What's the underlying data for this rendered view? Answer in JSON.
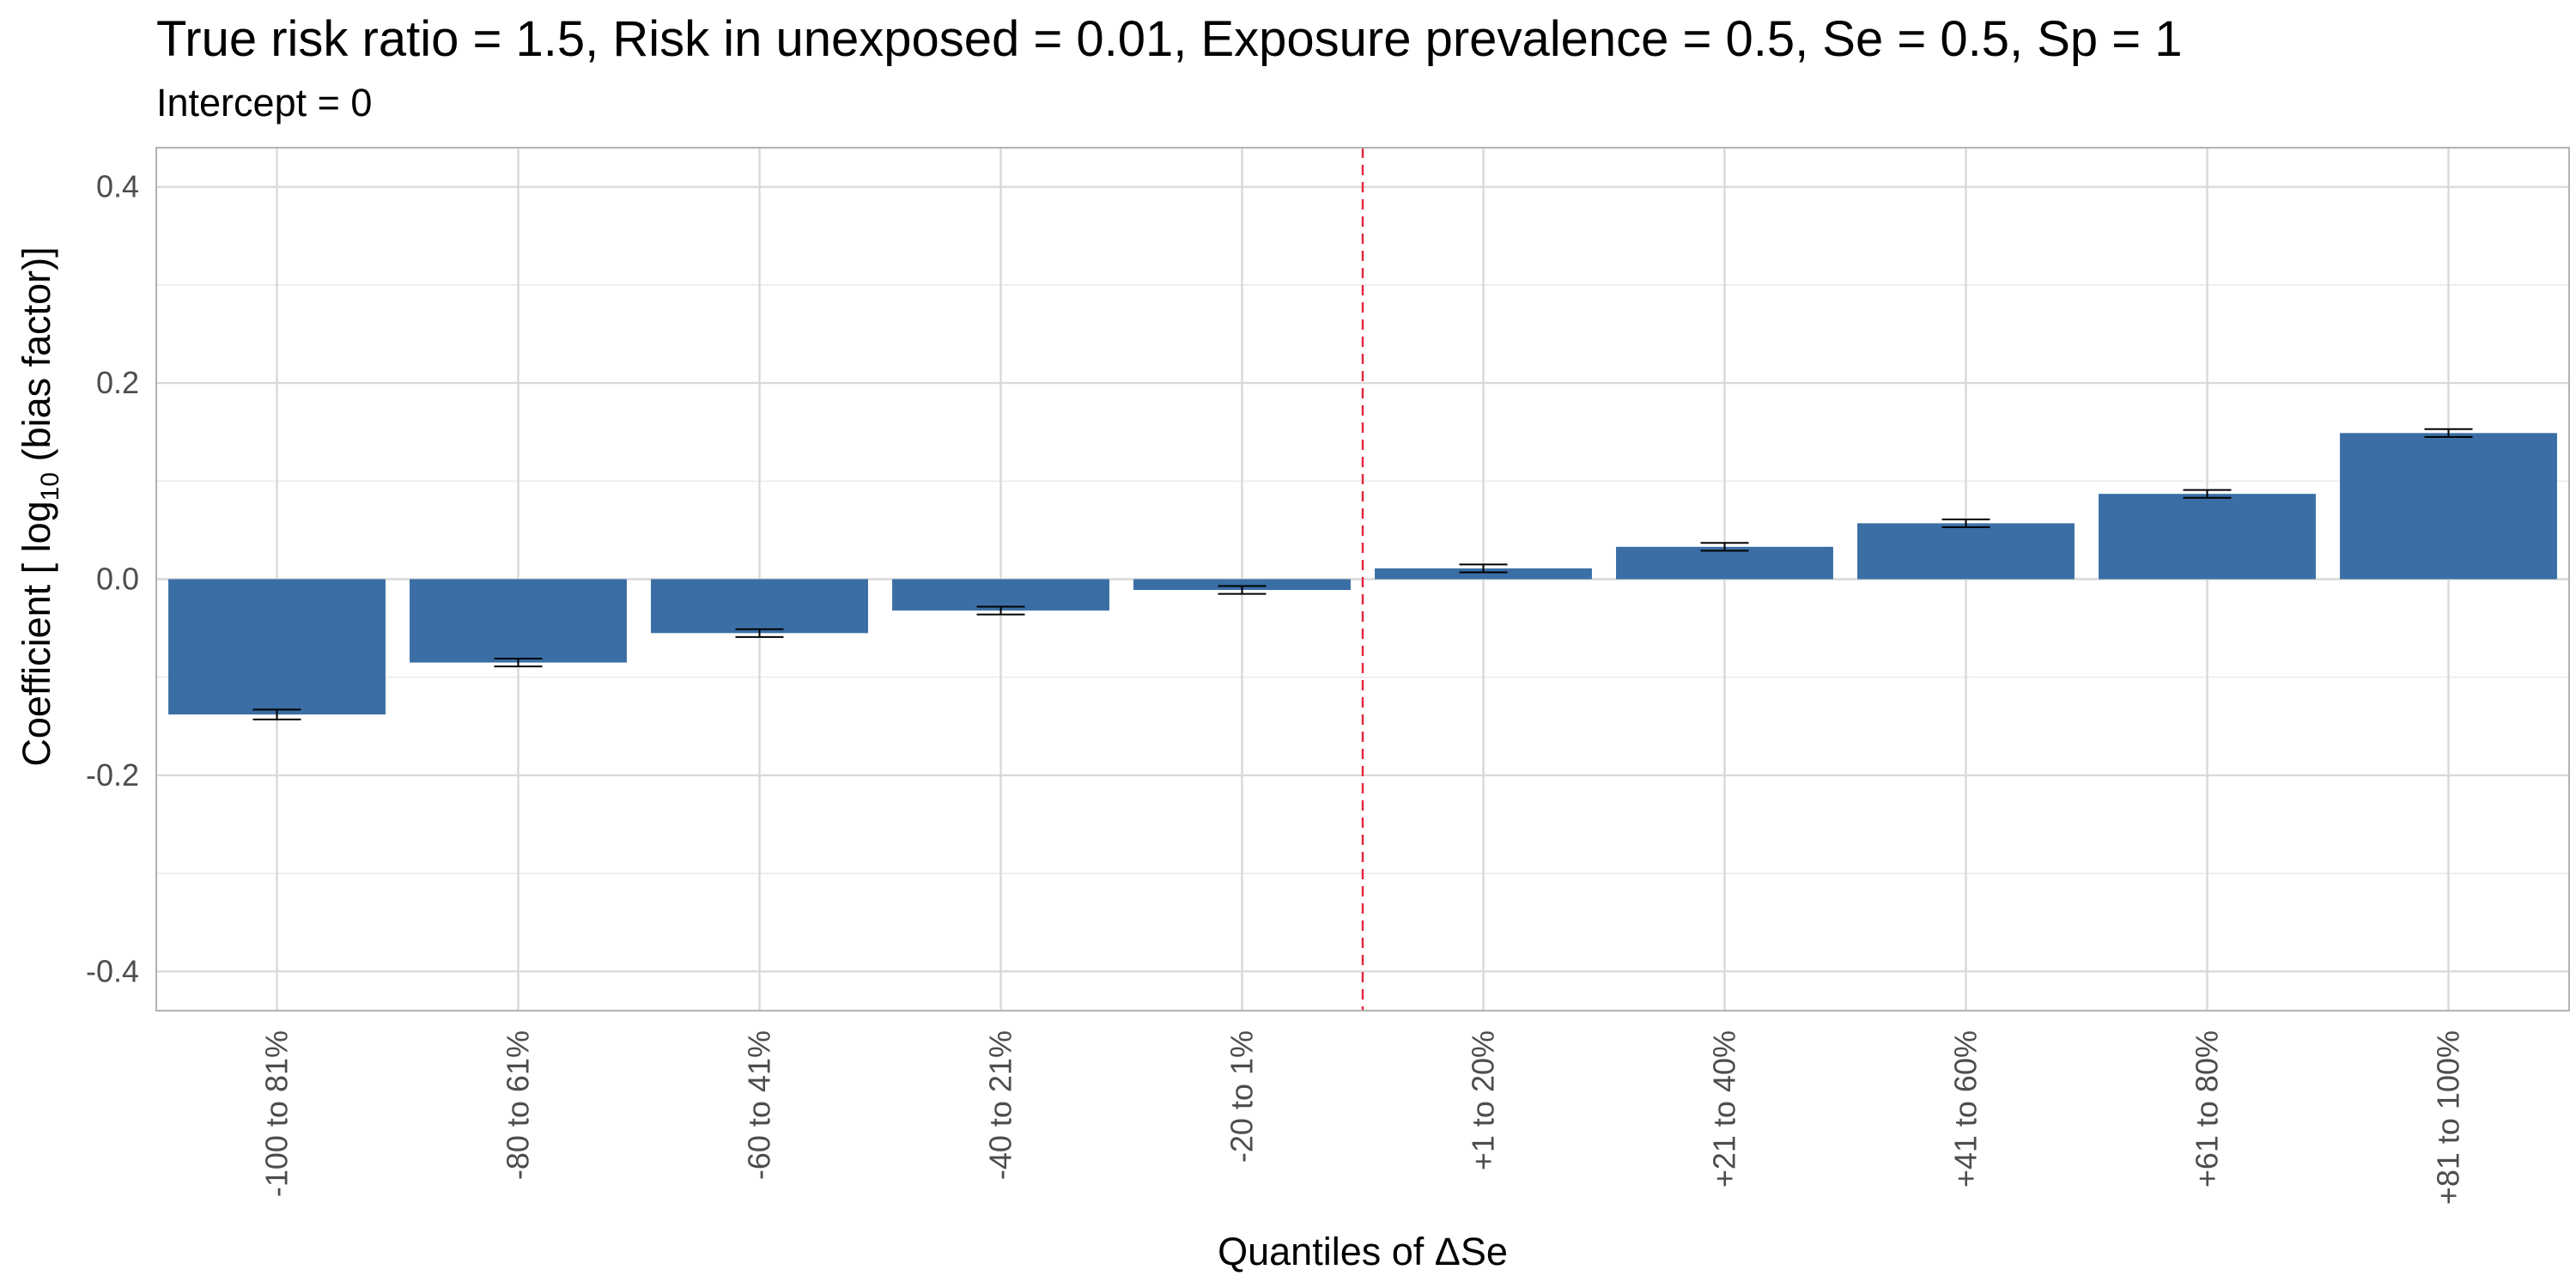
{
  "chart_data": {
    "type": "bar",
    "title": "True risk ratio = 1.5, Risk in unexposed = 0.01, Exposure prevalence = 0.5, Se = 0.5, Sp = 1",
    "subtitle": "Intercept = 0",
    "xlabel": "Quantiles of ΔSe",
    "ylabel": {
      "before": "Coefficient [ log",
      "subscript": "10",
      "after": " (bias factor)]"
    },
    "categories": [
      "-100 to 81%",
      "-80 to 61%",
      "-60 to 41%",
      "-40 to 21%",
      "-20 to 1%",
      "+1 to 20%",
      "+21 to 40%",
      "+41 to 60%",
      "+61 to 80%",
      "+81 to 100%"
    ],
    "values": [
      -0.138,
      -0.085,
      -0.055,
      -0.032,
      -0.011,
      0.011,
      0.033,
      0.057,
      0.087,
      0.149
    ],
    "error_lower": [
      -0.143,
      -0.089,
      -0.059,
      -0.036,
      -0.015,
      0.007,
      0.029,
      0.053,
      0.083,
      0.145
    ],
    "error_upper": [
      -0.133,
      -0.081,
      -0.051,
      -0.028,
      -0.007,
      0.015,
      0.037,
      0.061,
      0.091,
      0.153
    ],
    "yticks": [
      -0.4,
      -0.2,
      0.0,
      0.2,
      0.4
    ],
    "ytick_labels": [
      "-0.4",
      "-0.2",
      "0.0",
      "0.2",
      "0.4"
    ],
    "ylim": [
      -0.44,
      0.44
    ],
    "grid": true,
    "reference_line": {
      "position": "between -20 to 1% and +1 to 20%",
      "style": "dashed"
    },
    "colors": {
      "bar": "#3a6ea5",
      "reference_line": "#e8243c",
      "grid": "#d9d9d9",
      "panel_border": "#b3b3b3",
      "errorbar": "#000000"
    }
  }
}
